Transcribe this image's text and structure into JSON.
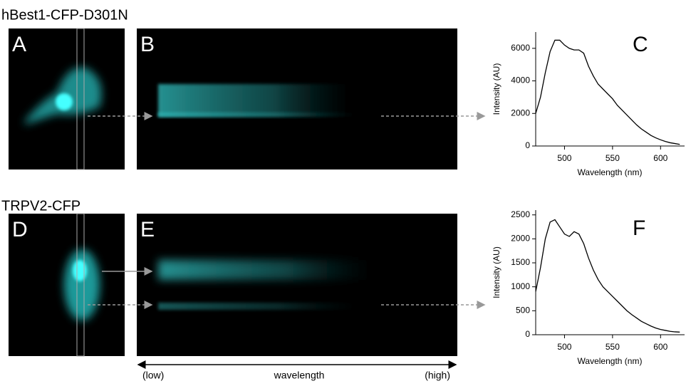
{
  "panels": {
    "top_title": "hBest1-CFP-D301N",
    "bottom_title": "TRPV2-CFP",
    "labels": [
      "A",
      "B",
      "C",
      "D",
      "E",
      "F"
    ]
  },
  "axis_caption": {
    "low": "(low)",
    "mid": "wavelength",
    "high": "(high)"
  },
  "chart_data": [
    {
      "type": "line",
      "xlabel": "Wavelength (nm)",
      "ylabel": "Intensity (AU)",
      "color": "#000000",
      "xlim": [
        470,
        625
      ],
      "ylim": [
        0,
        7000
      ],
      "xticks": [
        500,
        550,
        600
      ],
      "yticks": [
        0,
        2000,
        4000,
        6000
      ],
      "x": [
        470,
        475,
        480,
        485,
        490,
        495,
        500,
        505,
        510,
        515,
        520,
        525,
        530,
        535,
        540,
        545,
        550,
        555,
        560,
        565,
        570,
        575,
        580,
        585,
        590,
        595,
        600,
        605,
        610,
        615,
        620
      ],
      "values": [
        2000,
        3000,
        4500,
        5800,
        6500,
        6500,
        6200,
        6000,
        5900,
        5900,
        5700,
        4900,
        4300,
        3800,
        3500,
        3200,
        2900,
        2500,
        2200,
        1900,
        1600,
        1300,
        1050,
        850,
        650,
        500,
        380,
        280,
        200,
        150,
        100
      ]
    },
    {
      "type": "line",
      "xlabel": "Wavelength (nm)",
      "ylabel": "Intensity (AU)",
      "color": "#000000",
      "xlim": [
        470,
        625
      ],
      "ylim": [
        0,
        2600
      ],
      "xticks": [
        500,
        550,
        600
      ],
      "yticks": [
        0,
        500,
        1000,
        1500,
        2000,
        2500
      ],
      "x": [
        470,
        475,
        480,
        485,
        490,
        495,
        500,
        505,
        510,
        515,
        520,
        525,
        530,
        535,
        540,
        545,
        550,
        555,
        560,
        565,
        570,
        575,
        580,
        585,
        590,
        595,
        600,
        605,
        610,
        615,
        620
      ],
      "values": [
        900,
        1400,
        2000,
        2350,
        2400,
        2250,
        2100,
        2050,
        2150,
        2100,
        1900,
        1600,
        1350,
        1150,
        1000,
        900,
        800,
        700,
        600,
        500,
        420,
        350,
        280,
        230,
        180,
        140,
        110,
        90,
        70,
        60,
        55
      ]
    }
  ]
}
